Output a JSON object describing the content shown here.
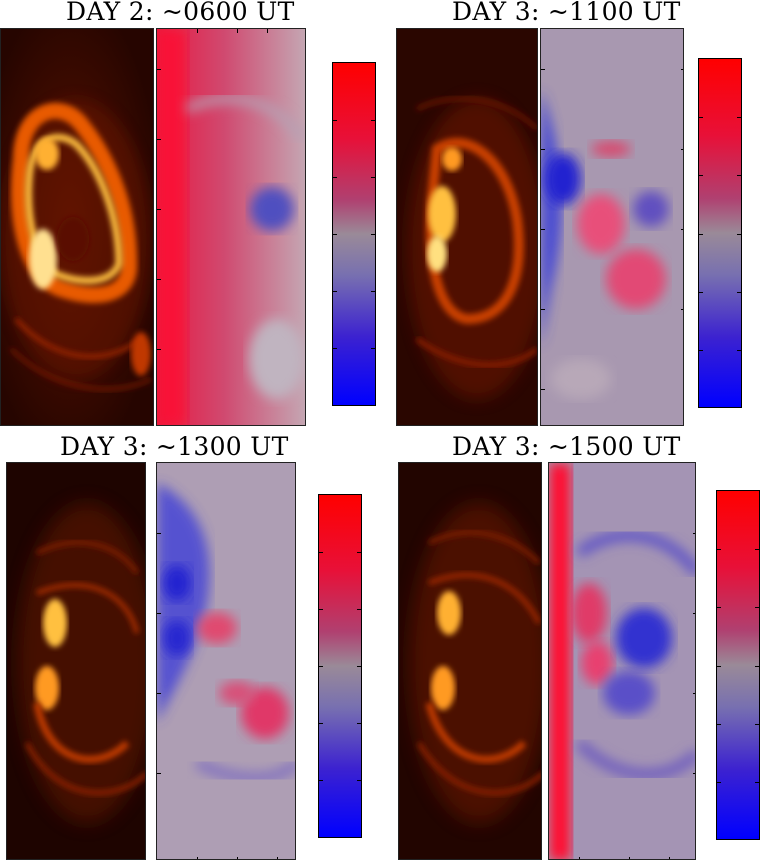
{
  "panels": [
    {
      "title": "DAY 2: ~0600 UT"
    },
    {
      "title": "DAY 3: ~1100 UT"
    },
    {
      "title": "DAY 3: ~1300 UT"
    },
    {
      "title": "DAY 3: ~1500 UT"
    }
  ],
  "colormaps": {
    "intensity": [
      "#1a0300",
      "#5a0f00",
      "#a02800",
      "#e05a00",
      "#ffb030",
      "#ffe89a"
    ],
    "velocity": [
      "#0000ff",
      "#7f7f9f",
      "#ff0000"
    ]
  }
}
